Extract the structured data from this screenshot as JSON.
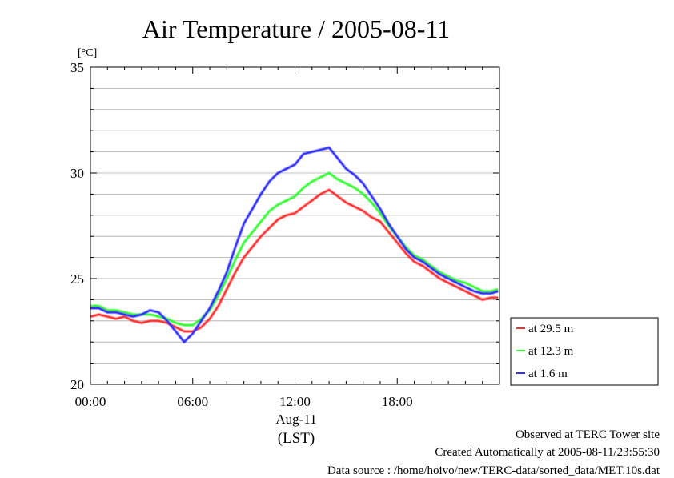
{
  "chart_data": {
    "type": "line",
    "title": "Air Temperature / 2005-08-11",
    "unit_label": "[°C]",
    "ylim": [
      20,
      35
    ],
    "y_ticks": [
      20,
      25,
      30,
      35
    ],
    "y_minor_step": 1,
    "xlim": [
      "00:00",
      "24:00"
    ],
    "x_ticks": [
      "00:00",
      "06:00",
      "12:00",
      "18:00"
    ],
    "x_date_label": "Aug-11",
    "x_tz_label": "(LST)",
    "grid": true,
    "legend_position": "right, below plot area",
    "series": [
      {
        "name": "at 29.5 m",
        "color": "#ff3030",
        "x": [
          "00:00",
          "00:30",
          "01:00",
          "01:30",
          "02:00",
          "02:30",
          "03:00",
          "03:30",
          "04:00",
          "04:30",
          "05:00",
          "05:30",
          "06:00",
          "06:30",
          "07:00",
          "07:30",
          "08:00",
          "08:30",
          "09:00",
          "09:30",
          "10:00",
          "10:30",
          "11:00",
          "11:30",
          "12:00",
          "12:30",
          "13:00",
          "13:30",
          "14:00",
          "14:30",
          "15:00",
          "15:30",
          "16:00",
          "16:30",
          "17:00",
          "17:30",
          "18:00",
          "18:30",
          "19:00",
          "19:30",
          "20:00",
          "20:30",
          "21:00",
          "21:30",
          "22:00",
          "22:30",
          "23:00",
          "23:30",
          "23:55"
        ],
        "y": [
          23.2,
          23.3,
          23.2,
          23.1,
          23.2,
          23.0,
          22.9,
          23.0,
          23.0,
          22.9,
          22.7,
          22.5,
          22.5,
          22.7,
          23.1,
          23.7,
          24.5,
          25.3,
          26.0,
          26.5,
          27.0,
          27.4,
          27.8,
          28.0,
          28.1,
          28.4,
          28.7,
          29.0,
          29.2,
          28.9,
          28.6,
          28.4,
          28.2,
          27.9,
          27.7,
          27.2,
          26.7,
          26.2,
          25.8,
          25.6,
          25.3,
          25.0,
          24.8,
          24.6,
          24.4,
          24.2,
          24.0,
          24.1,
          24.1
        ]
      },
      {
        "name": "at 12.3 m",
        "color": "#30ff30",
        "x": [
          "00:00",
          "00:30",
          "01:00",
          "01:30",
          "02:00",
          "02:30",
          "03:00",
          "03:30",
          "04:00",
          "04:30",
          "05:00",
          "05:30",
          "06:00",
          "06:30",
          "07:00",
          "07:30",
          "08:00",
          "08:30",
          "09:00",
          "09:30",
          "10:00",
          "10:30",
          "11:00",
          "11:30",
          "12:00",
          "12:30",
          "13:00",
          "13:30",
          "14:00",
          "14:30",
          "15:00",
          "15:30",
          "16:00",
          "16:30",
          "17:00",
          "17:30",
          "18:00",
          "18:30",
          "19:00",
          "19:30",
          "20:00",
          "20:30",
          "21:00",
          "21:30",
          "22:00",
          "22:30",
          "23:00",
          "23:30",
          "23:55"
        ],
        "y": [
          23.7,
          23.7,
          23.5,
          23.5,
          23.4,
          23.3,
          23.3,
          23.3,
          23.2,
          23.1,
          22.9,
          22.8,
          22.8,
          23.1,
          23.5,
          24.2,
          25.0,
          25.9,
          26.7,
          27.2,
          27.7,
          28.2,
          28.5,
          28.7,
          28.9,
          29.3,
          29.6,
          29.8,
          30.0,
          29.7,
          29.5,
          29.3,
          29.0,
          28.6,
          28.1,
          27.5,
          27.0,
          26.5,
          26.1,
          25.9,
          25.6,
          25.3,
          25.1,
          24.9,
          24.8,
          24.6,
          24.4,
          24.4,
          24.5
        ]
      },
      {
        "name": "at 1.6 m",
        "color": "#3030ff",
        "x": [
          "00:00",
          "00:30",
          "01:00",
          "01:30",
          "02:00",
          "02:30",
          "03:00",
          "03:30",
          "04:00",
          "04:30",
          "05:00",
          "05:30",
          "06:00",
          "06:30",
          "07:00",
          "07:30",
          "08:00",
          "08:30",
          "09:00",
          "09:30",
          "10:00",
          "10:30",
          "11:00",
          "11:30",
          "12:00",
          "12:30",
          "13:00",
          "13:30",
          "14:00",
          "14:30",
          "15:00",
          "15:30",
          "16:00",
          "16:30",
          "17:00",
          "17:30",
          "18:00",
          "18:30",
          "19:00",
          "19:30",
          "20:00",
          "20:30",
          "21:00",
          "21:30",
          "22:00",
          "22:30",
          "23:00",
          "23:30",
          "23:55"
        ],
        "y": [
          23.6,
          23.6,
          23.4,
          23.4,
          23.3,
          23.2,
          23.3,
          23.5,
          23.4,
          23.0,
          22.5,
          22.0,
          22.4,
          23.0,
          23.6,
          24.4,
          25.3,
          26.5,
          27.6,
          28.3,
          29.0,
          29.6,
          30.0,
          30.2,
          30.4,
          30.9,
          31.0,
          31.1,
          31.2,
          30.7,
          30.2,
          29.9,
          29.5,
          28.9,
          28.3,
          27.6,
          27.0,
          26.4,
          26.0,
          25.8,
          25.5,
          25.2,
          25.0,
          24.8,
          24.6,
          24.4,
          24.3,
          24.3,
          24.4
        ]
      }
    ]
  },
  "footer": {
    "line1": "Observed at TERC Tower site",
    "line2": "Created Automatically at 2005-08-11/23:55:30",
    "line3": "Data source : /home/hoivo/new/TERC-data/sorted_data/MET.10s.dat"
  }
}
